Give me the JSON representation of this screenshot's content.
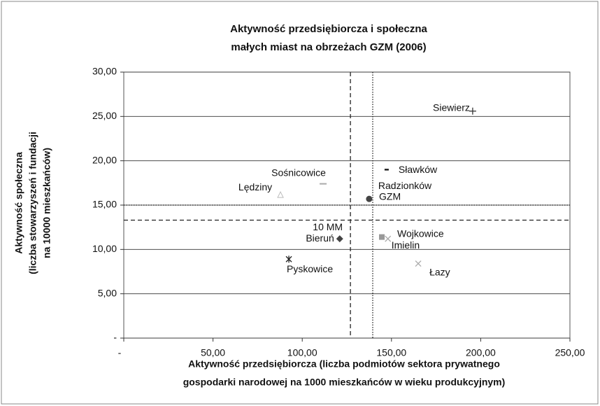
{
  "chart_data": {
    "type": "scatter",
    "title": [
      "Aktywność przedsiębiorcza i społeczna",
      "małych miast na obrzeżach GZM (2006)"
    ],
    "x_label": [
      "Aktywność przedsiębiorcza (liczba podmiotów sektora prywatnego",
      "gospodarki narodowej na 1000 mieszkańców w wieku produkcyjnym)"
    ],
    "y_label": [
      "Aktywność społeczna",
      "(liczba stowarzyszeń i fundacji",
      "na 10000 mieszkańców)"
    ],
    "labels": [
      "Siewierz",
      "Sławków",
      "Sośnicowice",
      "Lędziny",
      "Radzionków",
      "Bieruń",
      "Wojkowice",
      "Imielin",
      "Pyskowice",
      "Łazy"
    ],
    "x": [
      195.5,
      147.3,
      111.7,
      87.8,
      137.5,
      121,
      144.6,
      148,
      92.5,
      165
    ],
    "y": [
      25.6,
      19.0,
      17.4,
      16.1,
      15.7,
      11.2,
      11.4,
      11.2,
      8.9,
      8.4
    ],
    "markers": [
      "plus",
      "dash",
      "dash-light",
      "triangle",
      "circle",
      "diamond",
      "square",
      "x-light",
      "asterisk",
      "x-light"
    ],
    "references": [
      {
        "name": "10 MM",
        "x": 127,
        "y": 13.3,
        "style": "dashed"
      },
      {
        "name": "GZM",
        "x": 139.5,
        "y": 15.0,
        "style": "dotted"
      }
    ],
    "xlim": [
      0,
      250
    ],
    "xticks": [
      {
        "value": 0,
        "label": "-"
      },
      {
        "value": 50,
        "label": "50,00"
      },
      {
        "value": 100,
        "label": "100,00"
      },
      {
        "value": 150,
        "label": "150,00"
      },
      {
        "value": 200,
        "label": "200,00"
      },
      {
        "value": 250,
        "label": "250,00"
      }
    ],
    "ylim": [
      0,
      30
    ],
    "yticks": [
      {
        "value": 0,
        "label": "-"
      },
      {
        "value": 5,
        "label": "5,00"
      },
      {
        "value": 10,
        "label": "10,00"
      },
      {
        "value": 15,
        "label": "15,00"
      },
      {
        "value": 20,
        "label": "20,00"
      },
      {
        "value": 25,
        "label": "25,00"
      },
      {
        "value": 30,
        "label": "30,00"
      }
    ],
    "grid": true
  }
}
